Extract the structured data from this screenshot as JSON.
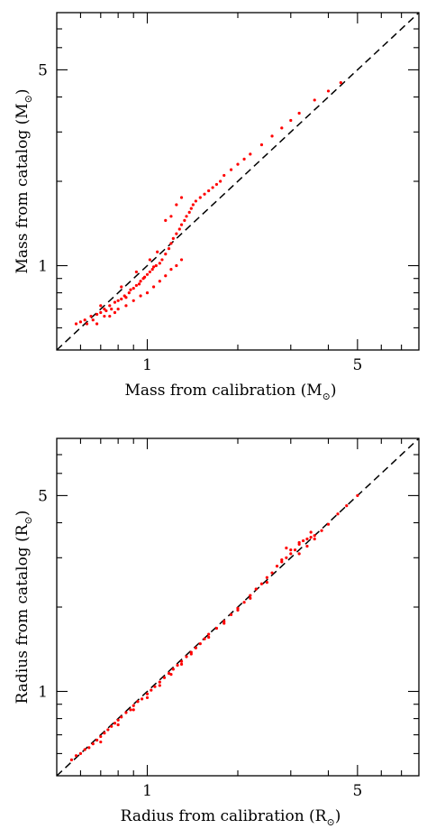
{
  "charts": [
    {
      "xlabel": {
        "pre": "Mass from calibration (M",
        "sub": "⊙",
        "post": ")"
      },
      "ylabel": {
        "pre": "Mass from catalog (M",
        "sub": "⊙",
        "post": ")"
      }
    },
    {
      "xlabel": {
        "pre": "Radius from calibration (R",
        "sub": "⊙",
        "post": ")"
      },
      "ylabel": {
        "pre": "Radius from catalog (R",
        "sub": "⊙",
        "post": ")"
      }
    }
  ],
  "chart_data": [
    {
      "type": "scatter",
      "xscale": "log",
      "yscale": "log",
      "xlim": [
        0.5,
        8
      ],
      "ylim": [
        0.5,
        8
      ],
      "x_ticks": [
        {
          "value": 1,
          "label": "1"
        },
        {
          "value": 5,
          "label": "5"
        }
      ],
      "y_ticks": [
        {
          "value": 1,
          "label": "1"
        },
        {
          "value": 5,
          "label": "5"
        }
      ],
      "reference_line": "y = x (dashed)",
      "point_color": "#ff0000",
      "line_color": "#000000",
      "series": [
        {
          "points": [
            [
              0.58,
              0.62
            ],
            [
              0.6,
              0.63
            ],
            [
              0.62,
              0.64
            ],
            [
              0.63,
              0.62
            ],
            [
              0.65,
              0.66
            ],
            [
              0.66,
              0.64
            ],
            [
              0.68,
              0.67
            ],
            [
              0.7,
              0.68
            ],
            [
              0.72,
              0.7
            ],
            [
              0.73,
              0.69
            ],
            [
              0.75,
              0.72
            ],
            [
              0.76,
              0.7
            ],
            [
              0.78,
              0.74
            ],
            [
              0.8,
              0.75
            ],
            [
              0.82,
              0.76
            ],
            [
              0.84,
              0.78
            ],
            [
              0.85,
              0.77
            ],
            [
              0.87,
              0.8
            ],
            [
              0.88,
              0.82
            ],
            [
              0.9,
              0.83
            ],
            [
              0.92,
              0.85
            ],
            [
              0.94,
              0.86
            ],
            [
              0.95,
              0.88
            ],
            [
              0.97,
              0.9
            ],
            [
              0.98,
              0.91
            ],
            [
              1.0,
              0.93
            ],
            [
              1.02,
              0.95
            ],
            [
              1.04,
              0.97
            ],
            [
              1.05,
              0.99
            ],
            [
              1.07,
              1.0
            ],
            [
              1.1,
              1.02
            ],
            [
              1.12,
              1.05
            ],
            [
              1.15,
              1.1
            ],
            [
              1.18,
              1.15
            ],
            [
              1.2,
              1.2
            ],
            [
              1.22,
              1.25
            ],
            [
              1.25,
              1.3
            ],
            [
              1.28,
              1.35
            ],
            [
              1.3,
              1.4
            ],
            [
              1.33,
              1.45
            ],
            [
              1.35,
              1.5
            ],
            [
              1.38,
              1.55
            ],
            [
              1.4,
              1.6
            ],
            [
              1.42,
              1.65
            ],
            [
              1.45,
              1.7
            ],
            [
              1.5,
              1.75
            ],
            [
              1.55,
              1.8
            ],
            [
              1.6,
              1.85
            ],
            [
              1.65,
              1.9
            ],
            [
              1.7,
              1.95
            ],
            [
              1.75,
              2.0
            ],
            [
              1.8,
              2.1
            ],
            [
              1.9,
              2.2
            ],
            [
              2.0,
              2.3
            ],
            [
              2.1,
              2.4
            ],
            [
              2.2,
              2.5
            ],
            [
              2.4,
              2.7
            ],
            [
              2.6,
              2.9
            ],
            [
              2.8,
              3.1
            ],
            [
              3.0,
              3.3
            ],
            [
              3.2,
              3.5
            ],
            [
              3.6,
              3.9
            ],
            [
              4.0,
              4.2
            ],
            [
              4.4,
              4.5
            ],
            [
              0.75,
              0.66
            ],
            [
              0.8,
              0.7
            ],
            [
              0.85,
              0.72
            ],
            [
              0.9,
              0.75
            ],
            [
              0.95,
              0.78
            ],
            [
              1.0,
              0.8
            ],
            [
              1.05,
              0.84
            ],
            [
              1.1,
              0.88
            ],
            [
              1.15,
              0.92
            ],
            [
              1.2,
              0.97
            ],
            [
              1.25,
              1.0
            ],
            [
              1.3,
              1.05
            ],
            [
              1.2,
              1.5
            ],
            [
              1.25,
              1.65
            ],
            [
              1.3,
              1.75
            ],
            [
              1.15,
              1.45
            ],
            [
              0.7,
              0.72
            ],
            [
              0.82,
              0.84
            ],
            [
              0.92,
              0.95
            ],
            [
              1.02,
              1.05
            ],
            [
              1.08,
              1.12
            ],
            [
              0.68,
              0.62
            ],
            [
              0.72,
              0.66
            ],
            [
              0.78,
              0.68
            ]
          ]
        }
      ]
    },
    {
      "type": "scatter",
      "xscale": "log",
      "yscale": "log",
      "xlim": [
        0.5,
        8
      ],
      "ylim": [
        0.5,
        8
      ],
      "x_ticks": [
        {
          "value": 1,
          "label": "1"
        },
        {
          "value": 5,
          "label": "5"
        }
      ],
      "y_ticks": [
        {
          "value": 1,
          "label": "1"
        },
        {
          "value": 5,
          "label": "5"
        }
      ],
      "reference_line": "y = x (dashed)",
      "point_color": "#ff0000",
      "line_color": "#000000",
      "series": [
        {
          "points": [
            [
              0.56,
              0.57
            ],
            [
              0.58,
              0.59
            ],
            [
              0.6,
              0.6
            ],
            [
              0.62,
              0.62
            ],
            [
              0.64,
              0.63
            ],
            [
              0.66,
              0.65
            ],
            [
              0.68,
              0.67
            ],
            [
              0.7,
              0.69
            ],
            [
              0.72,
              0.71
            ],
            [
              0.74,
              0.73
            ],
            [
              0.76,
              0.75
            ],
            [
              0.78,
              0.77
            ],
            [
              0.8,
              0.79
            ],
            [
              0.82,
              0.81
            ],
            [
              0.85,
              0.84
            ],
            [
              0.88,
              0.86
            ],
            [
              0.9,
              0.89
            ],
            [
              0.93,
              0.92
            ],
            [
              0.96,
              0.94
            ],
            [
              1.0,
              0.98
            ],
            [
              1.03,
              1.01
            ],
            [
              1.06,
              1.04
            ],
            [
              1.1,
              1.08
            ],
            [
              1.14,
              1.12
            ],
            [
              1.18,
              1.16
            ],
            [
              1.22,
              1.2
            ],
            [
              1.26,
              1.24
            ],
            [
              1.3,
              1.28
            ],
            [
              1.35,
              1.33
            ],
            [
              1.4,
              1.38
            ],
            [
              1.45,
              1.43
            ],
            [
              1.5,
              1.48
            ],
            [
              1.55,
              1.54
            ],
            [
              1.6,
              1.6
            ],
            [
              1.7,
              1.68
            ],
            [
              1.8,
              1.78
            ],
            [
              1.9,
              1.88
            ],
            [
              2.0,
              1.98
            ],
            [
              2.1,
              2.08
            ],
            [
              2.2,
              2.2
            ],
            [
              2.3,
              2.32
            ],
            [
              2.4,
              2.42
            ],
            [
              2.5,
              2.55
            ],
            [
              2.6,
              2.65
            ],
            [
              2.7,
              2.8
            ],
            [
              2.8,
              2.9
            ],
            [
              2.9,
              3.0
            ],
            [
              3.0,
              3.1
            ],
            [
              3.1,
              3.2
            ],
            [
              3.2,
              3.35
            ],
            [
              3.3,
              3.45
            ],
            [
              3.4,
              3.5
            ],
            [
              3.5,
              3.55
            ],
            [
              3.6,
              3.6
            ],
            [
              3.8,
              3.75
            ],
            [
              4.0,
              3.95
            ],
            [
              4.3,
              4.3
            ],
            [
              4.6,
              4.6
            ],
            [
              5.0,
              5.0
            ],
            [
              0.7,
              0.66
            ],
            [
              0.8,
              0.76
            ],
            [
              0.9,
              0.86
            ],
            [
              1.0,
              0.95
            ],
            [
              1.1,
              1.05
            ],
            [
              1.2,
              1.15
            ],
            [
              1.3,
              1.25
            ],
            [
              1.4,
              1.36
            ],
            [
              1.6,
              1.56
            ],
            [
              1.8,
              1.75
            ],
            [
              2.0,
              1.95
            ],
            [
              2.2,
              2.15
            ],
            [
              2.5,
              2.45
            ],
            [
              2.8,
              2.95
            ],
            [
              3.0,
              3.2
            ],
            [
              3.2,
              3.4
            ],
            [
              3.5,
              3.7
            ],
            [
              3.2,
              3.1
            ],
            [
              3.4,
              3.3
            ],
            [
              3.6,
              3.5
            ],
            [
              2.9,
              3.25
            ]
          ]
        }
      ]
    }
  ]
}
